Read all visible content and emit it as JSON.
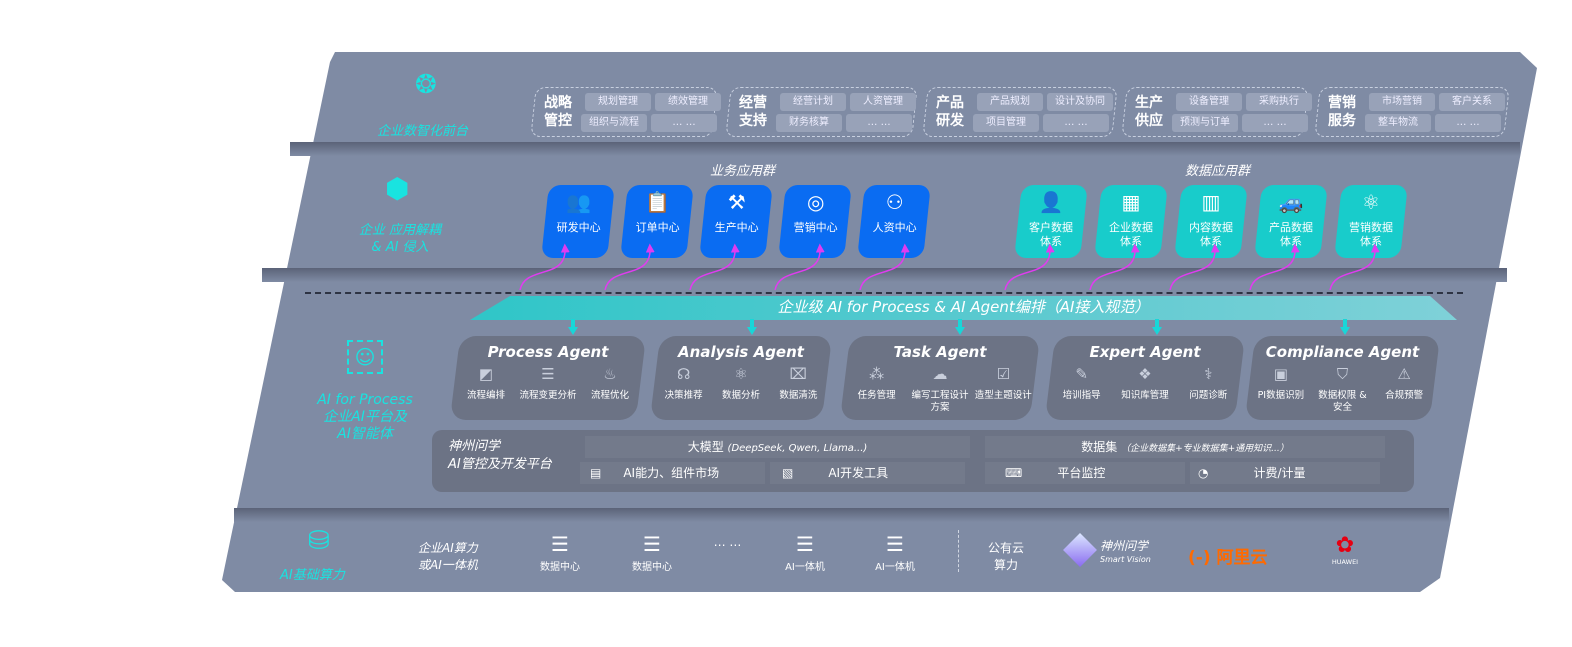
{
  "layers": {
    "front": {
      "label": "企业数智化前台",
      "icon": "brain-icon",
      "groups": [
        {
          "title": "战略管控",
          "items": [
            "规划管理",
            "绩效管理",
            "组织与流程",
            "… …"
          ]
        },
        {
          "title": "经营支持",
          "items": [
            "经营计划",
            "人资管理",
            "财务核算",
            "… …"
          ]
        },
        {
          "title": "产品研发",
          "items": [
            "产品规划",
            "设计及协同",
            "项目管理",
            "… …"
          ]
        },
        {
          "title": "生产供应",
          "items": [
            "设备管理",
            "采购执行",
            "预测与订单",
            "… …"
          ]
        },
        {
          "title": "营销服务",
          "items": [
            "市场营销",
            "客户关系",
            "整车物流",
            "… …"
          ]
        }
      ]
    },
    "apps": {
      "label_line1": "企业 应用解耦",
      "label_line2": "& AI 侵入",
      "icon": "molecule-icon",
      "business_title": "业务应用群",
      "data_title": "数据应用群",
      "business": [
        {
          "label": "研发中心",
          "icon": "team-icon"
        },
        {
          "label": "订单中心",
          "icon": "clipboard-icon"
        },
        {
          "label": "生产中心",
          "icon": "factory-icon"
        },
        {
          "label": "营销中心",
          "icon": "target-icon"
        },
        {
          "label": "人资中心",
          "icon": "person-icon"
        }
      ],
      "data": [
        {
          "l1": "客户数据",
          "l2": "体系",
          "icon": "user-icon"
        },
        {
          "l1": "企业数据",
          "l2": "体系",
          "icon": "building-icon"
        },
        {
          "l1": "内容数据",
          "l2": "体系",
          "icon": "books-icon"
        },
        {
          "l1": "产品数据",
          "l2": "体系",
          "icon": "car-icon"
        },
        {
          "l1": "营销数据",
          "l2": "体系",
          "icon": "atom-icon"
        }
      ],
      "accent_blue": "#0a6cf2",
      "accent_teal": "#18cccb"
    },
    "ai": {
      "label_line1": "AI for Process",
      "label_line2": "企业AI平台及",
      "label_line3": "AI智能体",
      "icon": "face-scan-icon",
      "orchestration": "企业级 AI for Process & AI Agent编排（AI接入规范）",
      "agents": [
        {
          "title": "Process Agent",
          "items": [
            {
              "l": "流程编排",
              "i": "chart-window-icon"
            },
            {
              "l": "流程变更分析",
              "i": "list-icon"
            },
            {
              "l": "流程优化",
              "i": "optimize-icon"
            }
          ]
        },
        {
          "title": "Analysis Agent",
          "items": [
            {
              "l": "决策推荐",
              "i": "head-icon"
            },
            {
              "l": "数据分析",
              "i": "atom-icon"
            },
            {
              "l": "数据清洗",
              "i": "clean-icon"
            }
          ]
        },
        {
          "title": "Task Agent",
          "items": [
            {
              "l": "任务管理",
              "i": "network-icon"
            },
            {
              "l": "编写工程设计方案",
              "i": "cloud-icon"
            },
            {
              "l": "造型主题设计",
              "i": "checklist-icon"
            }
          ]
        },
        {
          "title": "Expert Agent",
          "items": [
            {
              "l": "培训指导",
              "i": "pencil-icon"
            },
            {
              "l": "知识库管理",
              "i": "layers-icon"
            },
            {
              "l": "问题诊断",
              "i": "diagnose-icon"
            }
          ]
        },
        {
          "title": "Compliance Agent",
          "items": [
            {
              "l": "PI数据识别",
              "i": "id-card-icon"
            },
            {
              "l": "数据权限 & 安全",
              "i": "shield-icon"
            },
            {
              "l": "合规预警",
              "i": "alert-icon"
            }
          ]
        }
      ],
      "platform": {
        "name_line1": "神州问学",
        "name_line2": "AI管控及开发平台",
        "models": "大模型",
        "models_note": "(DeepSeek, Qwen, Llama...)",
        "datasets": "数据集",
        "datasets_note": "（企业数据集+专业数据集+通用知识...）",
        "market": "AI能力、组件市场",
        "devtools": "AI开发工具",
        "monitor": "平台监控",
        "billing": "计费/计量"
      }
    },
    "infra": {
      "label": "AI基础算力",
      "icon": "database-icon",
      "enterprise_line1": "企业AI算力",
      "enterprise_line2": "或AI一体机",
      "servers": [
        "数据中心",
        "数据中心",
        "AI一体机",
        "AI一体机"
      ],
      "ellipsis": "… …",
      "public_line1": "公有云",
      "public_line2": "算力",
      "vendors": {
        "shenzhou": "神州问学",
        "shenzhou_en": "Smart Vision",
        "aliyun": "阿里云",
        "aliyun_mark": "(-)",
        "huawei": "HUAWEI"
      },
      "aliyun_color": "#ff6a00",
      "huawei_color": "#e60012"
    }
  }
}
